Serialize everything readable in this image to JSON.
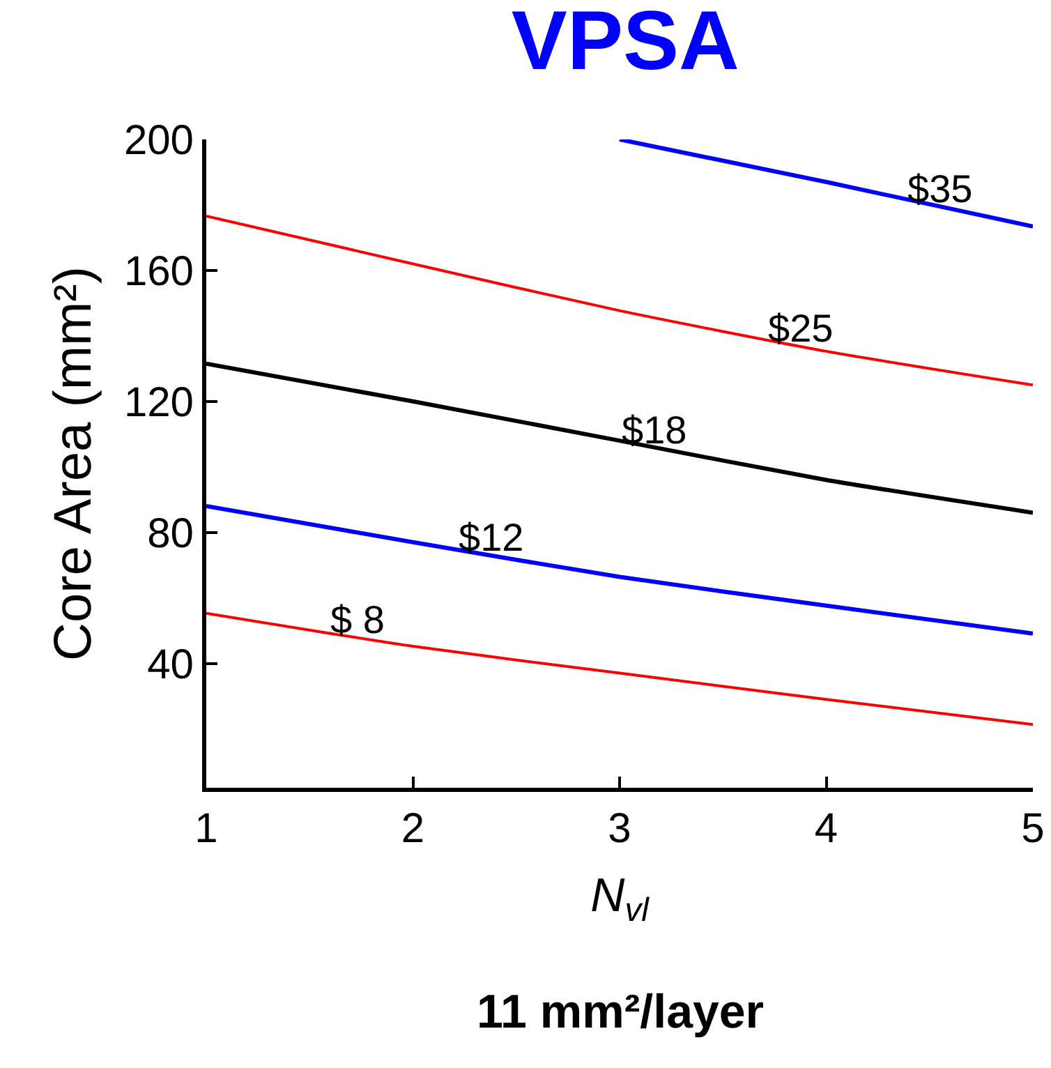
{
  "chart_data": {
    "type": "line",
    "title": "VPSA",
    "xlabel": "N$_{vl}$",
    "ylabel": "Core Area (mm²)",
    "xlim": [
      1,
      5
    ],
    "xticks": [
      1,
      2,
      3,
      4,
      5
    ],
    "ylim": [
      2,
      200
    ],
    "yticks": [
      40,
      80,
      120,
      160,
      200
    ],
    "grid": false,
    "marker": "none",
    "line_style": "solid",
    "series": [
      {
        "color": "#ff0000",
        "x": [
          1,
          2,
          3,
          4,
          5
        ],
        "values": [
          55.3,
          45.2,
          37,
          29,
          21.3
        ]
      },
      {
        "color": "#0000ff",
        "x": [
          1,
          2,
          3,
          4,
          5
        ],
        "values": [
          88,
          77,
          66.4,
          57.6,
          49.1
        ]
      },
      {
        "color": "#000000",
        "x": [
          1,
          2,
          3,
          4,
          5
        ],
        "values": [
          131.5,
          120,
          108,
          96,
          86
        ]
      },
      {
        "color": "#ff0000",
        "x": [
          1,
          2,
          3,
          4,
          5
        ],
        "values": [
          176.6,
          162,
          147.7,
          135.3,
          125
        ]
      },
      {
        "color": "#0000ff",
        "x": [
          3,
          4,
          5
        ],
        "values": [
          200,
          187,
          173.4
        ]
      }
    ],
    "annotations": [
      {
        "text": "$ 8",
        "x": 1.73,
        "y": 47.9
      },
      {
        "text": "$12",
        "x": 2.38,
        "y": 73
      },
      {
        "text": "$18",
        "x": 3.17,
        "y": 106
      },
      {
        "text": "$25",
        "x": 3.88,
        "y": 136.8
      },
      {
        "text": "$35",
        "x": 4.55,
        "y": 179.5
      },
      "11 mm²/layer"
    ]
  }
}
